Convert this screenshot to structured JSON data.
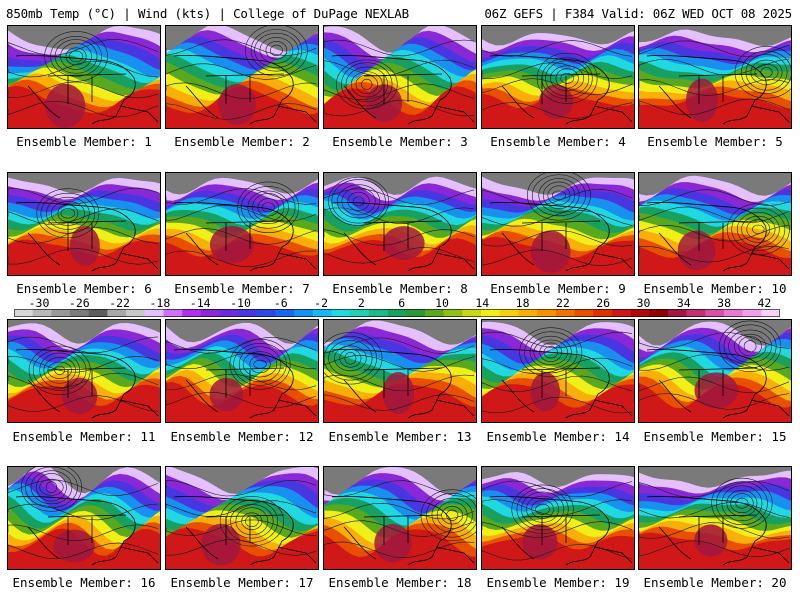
{
  "header": {
    "title_left": "850mb Temp (°C) | Wind (kts) | College of DuPage NEXLAB",
    "title_right": "06Z GEFS | F384 Valid: 06Z WED OCT 08 2025"
  },
  "panels": [
    {
      "label": "Ensemble Member: 1"
    },
    {
      "label": "Ensemble Member: 2"
    },
    {
      "label": "Ensemble Member: 3"
    },
    {
      "label": "Ensemble Member: 4"
    },
    {
      "label": "Ensemble Member: 5"
    },
    {
      "label": "Ensemble Member: 6"
    },
    {
      "label": "Ensemble Member: 7"
    },
    {
      "label": "Ensemble Member: 8"
    },
    {
      "label": "Ensemble Member: 9"
    },
    {
      "label": "Ensemble Member: 10"
    },
    {
      "label": "Ensemble Member: 11"
    },
    {
      "label": "Ensemble Member: 12"
    },
    {
      "label": "Ensemble Member: 13"
    },
    {
      "label": "Ensemble Member: 14"
    },
    {
      "label": "Ensemble Member: 15"
    },
    {
      "label": "Ensemble Member: 16"
    },
    {
      "label": "Ensemble Member: 17"
    },
    {
      "label": "Ensemble Member: 18"
    },
    {
      "label": "Ensemble Member: 19"
    },
    {
      "label": "Ensemble Member: 20"
    }
  ],
  "colorbar": {
    "ticks": [
      "-30",
      "-26",
      "-22",
      "-18",
      "-14",
      "-10",
      "-6",
      "-2",
      "2",
      "6",
      "10",
      "14",
      "18",
      "22",
      "26",
      "30",
      "34",
      "38",
      "42"
    ],
    "colors": [
      "#d8d8d8",
      "#b8b8b8",
      "#989898",
      "#7a7a7a",
      "#5e5e5e",
      "#a8a8a8",
      "#c8c8c8",
      "#e4c0ff",
      "#d070ff",
      "#b030f0",
      "#8a28d8",
      "#6a2ce0",
      "#4a36e0",
      "#2c48e8",
      "#1868f0",
      "#1890f0",
      "#18b8f0",
      "#20d8e0",
      "#20d0b0",
      "#20b888",
      "#18a060",
      "#289838",
      "#58a820",
      "#90c018",
      "#c8d818",
      "#f0f018",
      "#f8d010",
      "#f8b008",
      "#f89000",
      "#f07000",
      "#e85000",
      "#e03000",
      "#d01818",
      "#b00808",
      "#900000",
      "#a01840",
      "#c03070",
      "#d850a8",
      "#e878d0",
      "#f0a0e8",
      "#f8d0f8"
    ]
  }
}
